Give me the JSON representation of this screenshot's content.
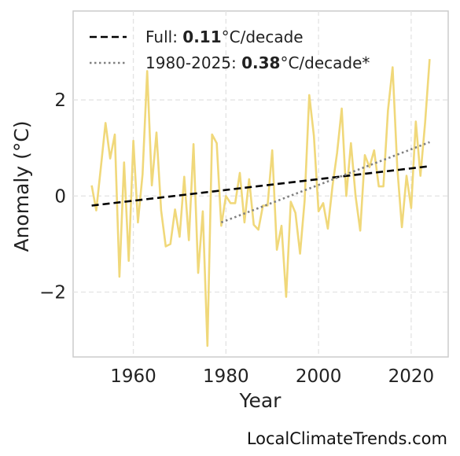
{
  "chart_data": {
    "type": "line",
    "xlabel": "Year",
    "ylabel": "Anomaly (°C)",
    "xlim": [
      1947,
      2028
    ],
    "ylim": [
      -3.35,
      3.85
    ],
    "xticks": [
      1960,
      1980,
      2000,
      2020
    ],
    "yticks": [
      -2,
      0,
      2
    ],
    "ytick_labels": [
      "−2",
      "0",
      "2"
    ],
    "grid": true,
    "legend_position": "top-left",
    "series": [
      {
        "style": "solid",
        "color": "#f0d87a",
        "x": [
          1951,
          1952,
          1953,
          1954,
          1955,
          1956,
          1957,
          1958,
          1959,
          1960,
          1961,
          1962,
          1963,
          1964,
          1965,
          1966,
          1967,
          1968,
          1969,
          1970,
          1971,
          1972,
          1973,
          1974,
          1975,
          1976,
          1977,
          1978,
          1979,
          1980,
          1981,
          1982,
          1983,
          1984,
          1985,
          1986,
          1987,
          1988,
          1989,
          1990,
          1991,
          1992,
          1993,
          1994,
          1995,
          1996,
          1997,
          1998,
          1999,
          2000,
          2001,
          2002,
          2003,
          2004,
          2005,
          2006,
          2007,
          2008,
          2009,
          2010,
          2011,
          2012,
          2013,
          2014,
          2015,
          2016,
          2017,
          2018,
          2019,
          2020,
          2021,
          2022,
          2023,
          2024
        ],
        "y": [
          0.22,
          -0.3,
          0.6,
          1.52,
          0.78,
          1.28,
          -1.68,
          0.7,
          -1.35,
          1.15,
          -0.55,
          0.45,
          2.6,
          0.22,
          1.32,
          -0.3,
          -1.05,
          -1.0,
          -0.28,
          -0.85,
          0.4,
          -0.92,
          1.08,
          -1.6,
          -0.32,
          -3.12,
          1.28,
          1.1,
          -0.62,
          0.0,
          -0.15,
          -0.15,
          0.48,
          -0.55,
          0.35,
          -0.6,
          -0.7,
          -0.2,
          -0.2,
          0.95,
          -1.12,
          -0.62,
          -2.1,
          -0.12,
          -0.35,
          -1.2,
          -0.1,
          2.1,
          1.25,
          -0.32,
          -0.15,
          -0.68,
          0.2,
          0.9,
          1.82,
          0.0,
          1.1,
          0.0,
          -0.72,
          0.85,
          0.6,
          0.95,
          0.2,
          0.2,
          1.78,
          2.68,
          0.6,
          -0.65,
          0.42,
          -0.25,
          1.55,
          0.42,
          1.52,
          2.85
        ]
      },
      {
        "style": "dashed",
        "color": "#000000",
        "x": [
          1951,
          2024
        ],
        "y": [
          -0.2,
          0.62
        ],
        "legend_label": "Full: ",
        "legend_value": "0.11",
        "legend_unit": "°C/decade"
      },
      {
        "style": "dotted",
        "color": "#808080",
        "x": [
          1979,
          2024
        ],
        "y": [
          -0.55,
          1.12
        ],
        "legend_label": "1980-2025: ",
        "legend_value": "0.38",
        "legend_unit": "°C/decade*"
      }
    ]
  },
  "credit": "LocalClimateTrends.com"
}
